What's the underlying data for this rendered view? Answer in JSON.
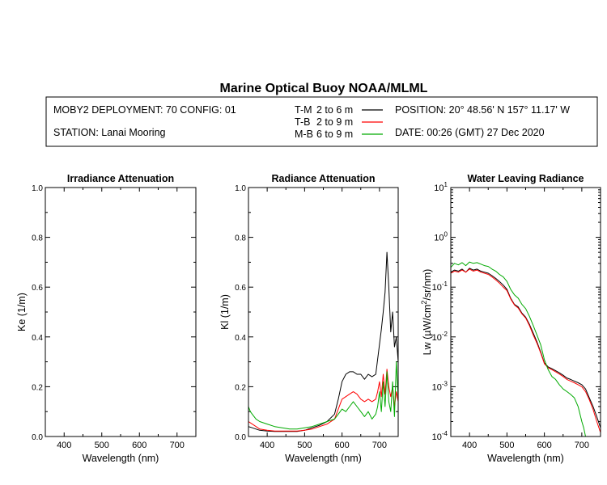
{
  "header": {
    "title": "Marine Optical Buoy NOAA/MLML",
    "deployment": "MOBY2 DEPLOYMENT: 70 CONFIG: 01",
    "station": "STATION: Lanai Mooring",
    "position": "POSITION: 20° 48.56' N   157° 11.17' W",
    "date": "DATE: 00:26 (GMT) 27 Dec 2020",
    "legend": [
      {
        "code": "T-M",
        "range": "2 to 6  m",
        "color": "#000000"
      },
      {
        "code": "T-B",
        "range": "2 to 9  m",
        "color": "#ff0000"
      },
      {
        "code": "M-B",
        "range": "6 to 9  m",
        "color": "#00aa00"
      }
    ]
  },
  "chart_data": [
    {
      "type": "line",
      "title": "Irradiance Attenuation",
      "xlabel": "Wavelength (nm)",
      "ylabel": "Ke  (1/m)",
      "xlim": [
        350,
        750
      ],
      "ylim": [
        0,
        1.0
      ],
      "xticks": [
        "400",
        "500",
        "600",
        "700"
      ],
      "yticks": [
        "0.0",
        "0.2",
        "0.4",
        "0.6",
        "0.8",
        "1.0"
      ],
      "series": []
    },
    {
      "type": "line",
      "title": "Radiance Attenuation",
      "xlabel": "Wavelength (nm)",
      "ylabel": "Kl  (1/m)",
      "xlim": [
        350,
        750
      ],
      "ylim": [
        0,
        1.0
      ],
      "xticks": [
        "400",
        "500",
        "600",
        "700"
      ],
      "yticks": [
        "0.0",
        "0.2",
        "0.4",
        "0.6",
        "0.8",
        "1.0"
      ],
      "series": [
        {
          "name": "T-M",
          "color": "#000000",
          "x": [
            350,
            360,
            370,
            380,
            400,
            420,
            440,
            460,
            480,
            500,
            520,
            540,
            560,
            580,
            590,
            600,
            610,
            620,
            630,
            640,
            650,
            660,
            670,
            680,
            690,
            695,
            700,
            705,
            710,
            715,
            720,
            725,
            730,
            735,
            740,
            745,
            750
          ],
          "y": [
            0.04,
            0.035,
            0.03,
            0.025,
            0.022,
            0.02,
            0.02,
            0.02,
            0.02,
            0.025,
            0.035,
            0.045,
            0.06,
            0.09,
            0.15,
            0.22,
            0.25,
            0.26,
            0.26,
            0.25,
            0.25,
            0.23,
            0.25,
            0.24,
            0.25,
            0.31,
            0.37,
            0.43,
            0.5,
            0.58,
            0.74,
            0.6,
            0.42,
            0.5,
            0.36,
            0.4,
            0.3
          ]
        },
        {
          "name": "T-B",
          "color": "#ff0000",
          "x": [
            350,
            360,
            370,
            380,
            400,
            420,
            440,
            460,
            480,
            500,
            520,
            540,
            560,
            580,
            590,
            600,
            610,
            620,
            630,
            640,
            650,
            660,
            670,
            680,
            690,
            695,
            700,
            705,
            710,
            715,
            720,
            725,
            730,
            735,
            740,
            745,
            750
          ],
          "y": [
            0.06,
            0.05,
            0.04,
            0.03,
            0.025,
            0.022,
            0.022,
            0.022,
            0.022,
            0.025,
            0.03,
            0.04,
            0.05,
            0.07,
            0.11,
            0.15,
            0.16,
            0.17,
            0.18,
            0.17,
            0.15,
            0.14,
            0.15,
            0.14,
            0.15,
            0.18,
            0.22,
            0.16,
            0.25,
            0.17,
            0.27,
            0.2,
            0.16,
            0.2,
            0.12,
            0.18,
            0.14
          ]
        },
        {
          "name": "M-B",
          "color": "#00aa00",
          "x": [
            350,
            355,
            360,
            370,
            380,
            400,
            420,
            440,
            460,
            480,
            500,
            520,
            540,
            560,
            580,
            590,
            600,
            610,
            620,
            630,
            640,
            650,
            660,
            670,
            680,
            690,
            695,
            700,
            705,
            710,
            715,
            720,
            725,
            730,
            735,
            740,
            745,
            750
          ],
          "y": [
            0.12,
            0.1,
            0.09,
            0.07,
            0.06,
            0.05,
            0.04,
            0.035,
            0.03,
            0.03,
            0.035,
            0.04,
            0.05,
            0.06,
            0.07,
            0.09,
            0.11,
            0.1,
            0.12,
            0.14,
            0.12,
            0.1,
            0.08,
            0.1,
            0.07,
            0.09,
            0.12,
            0.18,
            0.1,
            0.22,
            0.12,
            0.26,
            0.14,
            0.1,
            0.22,
            0.08,
            0.3,
            0.15
          ]
        }
      ]
    },
    {
      "type": "line",
      "title": "Water Leaving Radiance",
      "xlabel": "Wavelength (nm)",
      "ylabel": "Lw  (µW/cm²/sr/nm)",
      "xlim": [
        350,
        750
      ],
      "ylim": [
        0.0001,
        10
      ],
      "yscale": "log",
      "xticks": [
        "400",
        "500",
        "600",
        "700"
      ],
      "yticks": [
        "10^-4",
        "10^-3",
        "10^-2",
        "10^-1",
        "10^0",
        "10^1"
      ],
      "series": [
        {
          "name": "T-M",
          "color": "#000000",
          "x": [
            350,
            360,
            370,
            380,
            390,
            400,
            410,
            420,
            430,
            440,
            450,
            460,
            470,
            480,
            490,
            500,
            510,
            520,
            530,
            540,
            550,
            560,
            570,
            580,
            590,
            600,
            610,
            620,
            630,
            640,
            650,
            660,
            670,
            680,
            690,
            700,
            710,
            720,
            730,
            740,
            750
          ],
          "y": [
            0.2,
            0.22,
            0.21,
            0.23,
            0.2,
            0.24,
            0.22,
            0.23,
            0.21,
            0.2,
            0.19,
            0.17,
            0.15,
            0.13,
            0.11,
            0.09,
            0.06,
            0.045,
            0.04,
            0.03,
            0.025,
            0.018,
            0.012,
            0.008,
            0.005,
            0.003,
            0.0025,
            0.0023,
            0.0021,
            0.0019,
            0.0017,
            0.0015,
            0.0014,
            0.0013,
            0.0012,
            0.0011,
            0.0009,
            0.0006,
            0.0004,
            0.00025,
            0.00015
          ]
        },
        {
          "name": "T-B",
          "color": "#ff0000",
          "x": [
            350,
            360,
            370,
            380,
            390,
            400,
            410,
            420,
            430,
            440,
            450,
            460,
            470,
            480,
            490,
            500,
            510,
            520,
            530,
            540,
            550,
            560,
            570,
            580,
            590,
            600,
            610,
            620,
            630,
            640,
            650,
            660,
            670,
            680,
            690,
            700,
            710,
            720,
            730,
            740,
            750
          ],
          "y": [
            0.19,
            0.21,
            0.2,
            0.22,
            0.2,
            0.23,
            0.21,
            0.22,
            0.2,
            0.19,
            0.18,
            0.16,
            0.14,
            0.12,
            0.1,
            0.085,
            0.058,
            0.044,
            0.038,
            0.029,
            0.024,
            0.017,
            0.011,
            0.0075,
            0.0048,
            0.0029,
            0.0024,
            0.0022,
            0.002,
            0.0018,
            0.0016,
            0.0014,
            0.0013,
            0.0012,
            0.0011,
            0.001,
            0.0008,
            0.00055,
            0.00035,
            0.0002,
            0.00012
          ]
        },
        {
          "name": "M-B",
          "color": "#00aa00",
          "x": [
            350,
            360,
            370,
            380,
            390,
            400,
            410,
            420,
            430,
            440,
            450,
            460,
            470,
            480,
            490,
            500,
            510,
            520,
            530,
            540,
            550,
            560,
            570,
            580,
            590,
            600,
            610,
            620,
            630,
            640,
            650,
            660,
            670,
            680,
            690,
            700,
            705,
            710,
            715
          ],
          "y": [
            0.25,
            0.3,
            0.28,
            0.31,
            0.27,
            0.32,
            0.3,
            0.31,
            0.29,
            0.27,
            0.26,
            0.23,
            0.21,
            0.18,
            0.16,
            0.13,
            0.09,
            0.07,
            0.06,
            0.045,
            0.037,
            0.026,
            0.017,
            0.011,
            0.007,
            0.0035,
            0.0022,
            0.0016,
            0.0014,
            0.0011,
            0.0009,
            0.0008,
            0.0007,
            0.0006,
            0.0004,
            0.0002,
            0.00015,
            0.0001,
            0.0001
          ]
        }
      ]
    }
  ]
}
